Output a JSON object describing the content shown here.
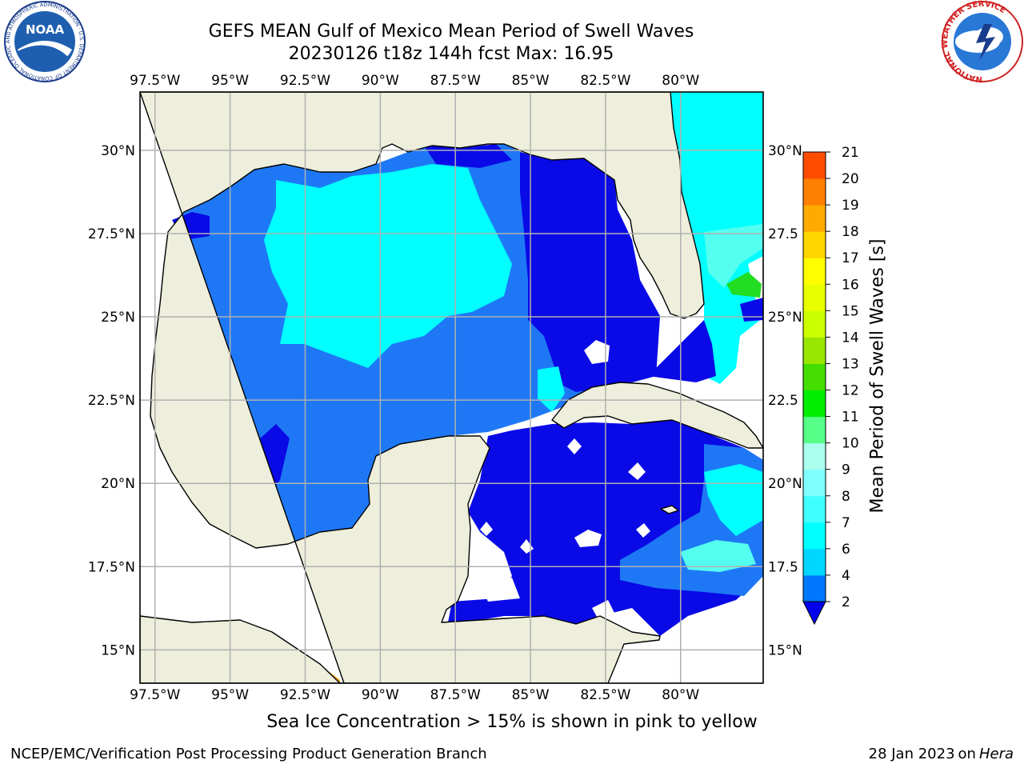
{
  "title": {
    "line1": "GEFS MEAN Gulf of Mexico Mean Period of Swell Waves",
    "line2": "20230126 t18z 144h fcst   Max: 16.95"
  },
  "map": {
    "projection": "PlateCarree",
    "lon_range": [
      -98,
      -77.25
    ],
    "lat_range": [
      14,
      31.75
    ],
    "lon_ticks": [
      {
        "value": -97.5,
        "label": "97.5°W"
      },
      {
        "value": -95,
        "label": "95°W"
      },
      {
        "value": -92.5,
        "label": "92.5°W"
      },
      {
        "value": -90,
        "label": "90°W"
      },
      {
        "value": -87.5,
        "label": "87.5°W"
      },
      {
        "value": -85,
        "label": "85°W"
      },
      {
        "value": -82.5,
        "label": "82.5°W"
      },
      {
        "value": -80,
        "label": "80°W"
      }
    ],
    "lat_ticks_left": [
      {
        "value": 15,
        "label": "15°N"
      },
      {
        "value": 17.5,
        "label": "17.5°N"
      },
      {
        "value": 20,
        "label": "20°N"
      },
      {
        "value": 22.5,
        "label": "22.5°N"
      },
      {
        "value": 25,
        "label": "25°N"
      },
      {
        "value": 27.5,
        "label": "27.5°N"
      },
      {
        "value": 30,
        "label": "30°N"
      }
    ],
    "lat_ticks_right": [
      {
        "value": 15,
        "label": "15°N"
      },
      {
        "value": 17.5,
        "label": "17.5"
      },
      {
        "value": 20,
        "label": "20°N"
      },
      {
        "value": 22.5,
        "label": "22.5"
      },
      {
        "value": 25,
        "label": "25°N"
      },
      {
        "value": 27.5,
        "label": "27.5"
      },
      {
        "value": 30,
        "label": "30°N"
      }
    ],
    "land_color": "#eeeedc",
    "grid_color": "#b0b0b0"
  },
  "colorbar": {
    "label": "Mean Period of Swell Waves [s]",
    "levels": [
      2,
      4,
      6,
      7,
      8,
      9,
      10,
      11,
      12,
      13,
      14,
      15,
      16,
      17,
      18,
      19,
      20,
      21
    ],
    "level_labels": [
      "2",
      "4",
      "6",
      "7",
      "8",
      "9",
      "10",
      "11",
      "12",
      "13",
      "14",
      "15",
      "16",
      "17",
      "18",
      "19",
      "20",
      "21"
    ],
    "colors": [
      "#0077ff",
      "#00d6ff",
      "#00ffff",
      "#40ffff",
      "#80ffff",
      "#aaffee",
      "#55ff88",
      "#00ee00",
      "#44dd00",
      "#99e600",
      "#ccff00",
      "#e8ff00",
      "#ffff00",
      "#ffd500",
      "#ffaa00",
      "#ff8000",
      "#ff4d00",
      "#ff2200",
      "#ff0000"
    ],
    "extend_color": "#0000ee"
  },
  "fill_colors": {
    "dark_blue": "#0a0ae6",
    "medium_blue": "#1e78f5",
    "cyan": "#00ffff",
    "light_cyan": "#55fff0",
    "green": "#22dd22",
    "yellow_green": "#ccf000",
    "yellow": "#eaff00",
    "orange": "#ffaa00"
  },
  "note": "Sea Ice Concentration > 15% is shown in pink to yellow",
  "footer": {
    "left": "NCEP/EMC/Verification Post Processing Product Generation Branch",
    "right_date": "28 Jan 2023",
    "right_on": "on",
    "right_host": "Hera"
  },
  "logos": {
    "noaa_text": "NOAA",
    "noaa_ring": "NATIONAL OCEANIC AND ATMOSPHERIC ADMINISTRATION · U.S. DEPARTMENT OF COMMERCE",
    "nws_ring": "NATIONAL WEATHER SERVICE"
  }
}
